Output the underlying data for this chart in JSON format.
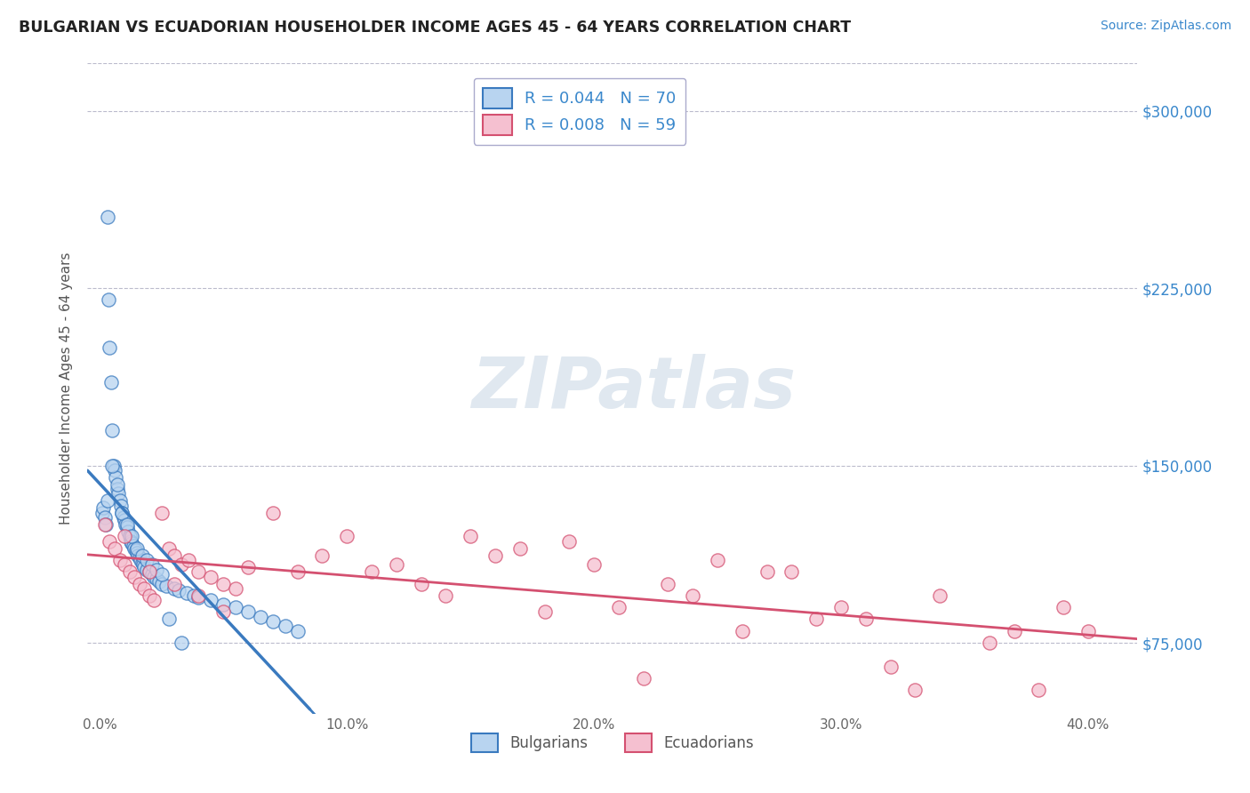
{
  "title": "BULGARIAN VS ECUADORIAN HOUSEHOLDER INCOME AGES 45 - 64 YEARS CORRELATION CHART",
  "source": "Source: ZipAtlas.com",
  "ylabel": "Householder Income Ages 45 - 64 years",
  "xlabel_ticks": [
    "0.0%",
    "10.0%",
    "20.0%",
    "30.0%",
    "40.0%"
  ],
  "xlabel_vals": [
    0.0,
    10.0,
    20.0,
    30.0,
    40.0
  ],
  "ytick_labels": [
    "$75,000",
    "$150,000",
    "$225,000",
    "$300,000"
  ],
  "ytick_vals": [
    75000,
    150000,
    225000,
    300000
  ],
  "ylim": [
    45000,
    320000
  ],
  "xlim": [
    -0.5,
    42.0
  ],
  "legend_entries": [
    {
      "label": "R = 0.044   N = 70",
      "color": "#b8d4f0",
      "text_color": "#3a7abf"
    },
    {
      "label": "R = 0.008   N = 59",
      "color": "#f5c0d0",
      "text_color": "#d45070"
    }
  ],
  "legend_label_bulgarians": "Bulgarians",
  "legend_label_ecuadorians": "Ecuadorians",
  "bg_color": "#ffffff",
  "grid_color": "#bbbbcc",
  "title_color": "#222222",
  "axis_label_color": "#555555",
  "ytick_color": "#3a88cc",
  "xtick_color": "#666666",
  "watermark_text": "ZIPatlas",
  "watermark_color": "#e0e8f0",
  "blue_scatter_color": "#b8d4f0",
  "pink_scatter_color": "#f5c0d0",
  "blue_line_color": "#3a7abf",
  "pink_line_color": "#d45070",
  "bulgarians_x": [
    0.1,
    0.15,
    0.2,
    0.25,
    0.3,
    0.35,
    0.4,
    0.45,
    0.5,
    0.55,
    0.6,
    0.65,
    0.7,
    0.75,
    0.8,
    0.85,
    0.9,
    0.95,
    1.0,
    1.05,
    1.1,
    1.15,
    1.2,
    1.25,
    1.3,
    1.35,
    1.4,
    1.45,
    1.5,
    1.55,
    1.6,
    1.65,
    1.7,
    1.75,
    1.8,
    1.9,
    2.0,
    2.1,
    2.2,
    2.3,
    2.4,
    2.5,
    2.7,
    3.0,
    3.2,
    3.5,
    3.8,
    4.0,
    4.5,
    5.0,
    5.5,
    6.0,
    6.5,
    7.0,
    7.5,
    8.0,
    0.3,
    0.5,
    0.7,
    0.9,
    1.1,
    1.3,
    1.5,
    1.7,
    1.9,
    2.1,
    2.3,
    2.5,
    2.8,
    3.3
  ],
  "bulgarians_y": [
    130000,
    132000,
    128000,
    125000,
    255000,
    220000,
    200000,
    185000,
    165000,
    150000,
    148000,
    145000,
    140000,
    138000,
    135000,
    133000,
    130000,
    128000,
    127000,
    125000,
    124000,
    122000,
    120000,
    118000,
    117000,
    116000,
    115000,
    114000,
    113000,
    112000,
    111000,
    110000,
    109000,
    108000,
    107000,
    106000,
    105000,
    104000,
    103000,
    102000,
    101000,
    100000,
    99000,
    98000,
    97000,
    96000,
    95000,
    94000,
    93000,
    91000,
    90000,
    88000,
    86000,
    84000,
    82000,
    80000,
    135000,
    150000,
    142000,
    130000,
    125000,
    120000,
    115000,
    112000,
    110000,
    108000,
    106000,
    104000,
    85000,
    75000
  ],
  "ecuadorians_x": [
    0.2,
    0.4,
    0.6,
    0.8,
    1.0,
    1.2,
    1.4,
    1.6,
    1.8,
    2.0,
    2.2,
    2.5,
    2.8,
    3.0,
    3.3,
    3.6,
    4.0,
    4.5,
    5.0,
    5.5,
    6.0,
    7.0,
    8.0,
    9.0,
    10.0,
    11.0,
    12.0,
    13.0,
    14.0,
    15.0,
    16.0,
    17.0,
    18.0,
    19.0,
    20.0,
    21.0,
    22.0,
    23.0,
    24.0,
    25.0,
    26.0,
    27.0,
    28.0,
    29.0,
    30.0,
    31.0,
    32.0,
    33.0,
    34.0,
    36.0,
    37.0,
    38.0,
    39.0,
    40.0,
    1.0,
    2.0,
    3.0,
    4.0,
    5.0
  ],
  "ecuadorians_y": [
    125000,
    118000,
    115000,
    110000,
    108000,
    105000,
    103000,
    100000,
    98000,
    95000,
    93000,
    130000,
    115000,
    112000,
    108000,
    110000,
    105000,
    103000,
    100000,
    98000,
    107000,
    130000,
    105000,
    112000,
    120000,
    105000,
    108000,
    100000,
    95000,
    120000,
    112000,
    115000,
    88000,
    118000,
    108000,
    90000,
    60000,
    100000,
    95000,
    110000,
    80000,
    105000,
    105000,
    85000,
    90000,
    85000,
    65000,
    55000,
    95000,
    75000,
    80000,
    55000,
    90000,
    80000,
    120000,
    105000,
    100000,
    95000,
    88000
  ]
}
